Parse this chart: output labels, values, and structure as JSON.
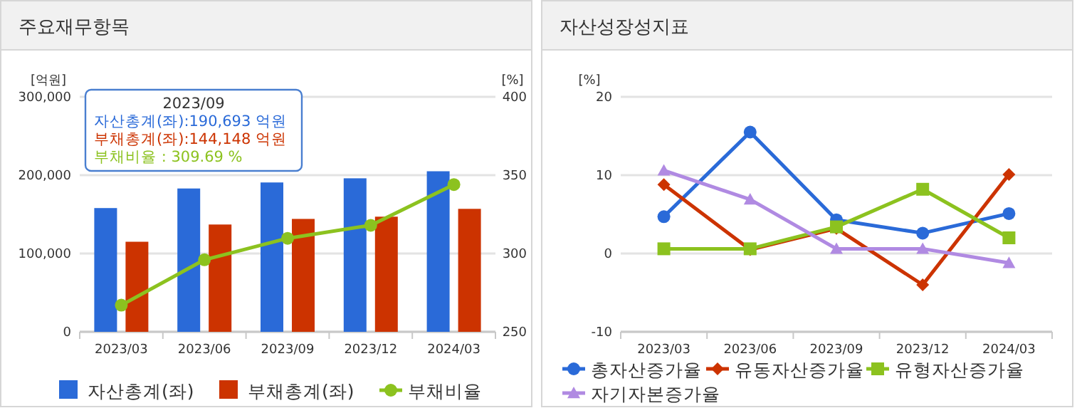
{
  "chart_data": [
    {
      "type": "bar",
      "title": "주요재무항목",
      "ylabel": "[억원]",
      "y2label": "[%]",
      "categories": [
        "2023/03",
        "2023/06",
        "2023/09",
        "2023/12",
        "2024/03"
      ],
      "series": [
        {
          "name": "자산총계(좌)",
          "color": "#2a6ad8",
          "values": [
            158000,
            183000,
            190693,
            196000,
            205000
          ]
        },
        {
          "name": "부채총계(좌)",
          "color": "#cc3300",
          "values": [
            115000,
            137000,
            144148,
            147000,
            157000
          ]
        },
        {
          "name": "부채비율",
          "type": "line",
          "axis": "y2",
          "color": "#8cc21f",
          "marker": "circle",
          "values": [
            267,
            296,
            309.69,
            318,
            344
          ]
        }
      ],
      "ylim": [
        0,
        300000
      ],
      "yticks": [
        0,
        {
          "value": 100000,
          "label": "100,000"
        },
        {
          "value": 200000,
          "label": "200,000"
        },
        {
          "value": 300000,
          "label": "300,000"
        }
      ],
      "y2lim": [
        250,
        400
      ],
      "y2ticks": [
        250,
        300,
        350,
        400
      ],
      "grid": "y",
      "legend": "bottom",
      "annotations": [
        "2023/09",
        "자산총계(좌):190,693 억원",
        "부채총계(좌):144,148 억원",
        "부채비율    :    309.69 %"
      ]
    },
    {
      "type": "line",
      "title": "자산성장성지표",
      "ylabel": "[%]",
      "categories": [
        "2023/03",
        "2023/06",
        "2023/09",
        "2023/12",
        "2024/03"
      ],
      "series": [
        {
          "name": "총자산증가율",
          "color": "#2a6ad8",
          "marker": "circle",
          "values": [
            4.7,
            15.5,
            4.3,
            2.6,
            5.1
          ]
        },
        {
          "name": "유동자산증가율",
          "color": "#cc3300",
          "marker": "diamond",
          "values": [
            8.8,
            0.5,
            3.2,
            -4.0,
            10.1
          ]
        },
        {
          "name": "유형자산증가율",
          "color": "#8cc21f",
          "marker": "square",
          "values": [
            0.6,
            0.6,
            3.4,
            8.2,
            2.0
          ]
        },
        {
          "name": "자기자본증가율",
          "color": "#b08ae2",
          "marker": "triangle",
          "values": [
            10.6,
            6.9,
            0.6,
            0.6,
            -1.2
          ]
        }
      ],
      "ylim": [
        -10,
        20
      ],
      "yticks": [
        -10,
        0,
        10,
        20
      ],
      "grid": "y",
      "legend": "bottom"
    }
  ]
}
